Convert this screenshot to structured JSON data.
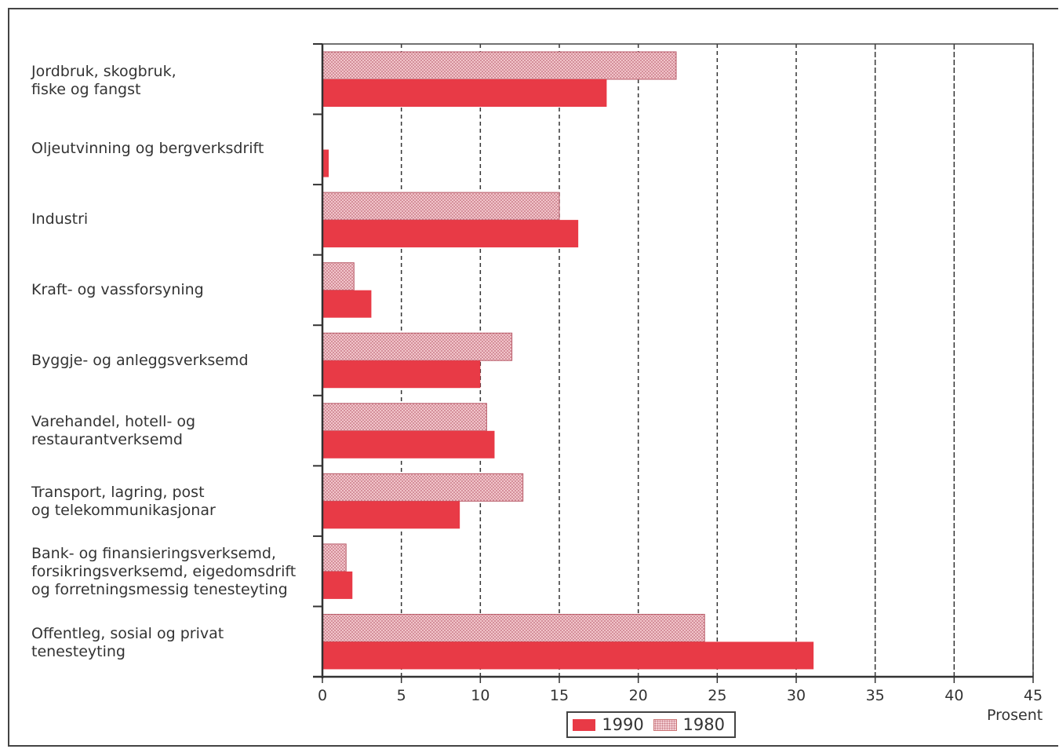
{
  "chart_data": {
    "type": "bar",
    "orientation": "horizontal",
    "categories": [
      "Jordbruk, skogbruk,\nfiske og fangst",
      "Oljeutvinning og bergverksdrift",
      "Industri",
      "Kraft- og vassforsyning",
      "Byggje- og anleggsverksemd",
      "Varehandel, hotell- og\nrestaurantverksemd",
      "Transport, lagring, post\nog telekommunikasjonar",
      "Bank- og finansieringsverksemd,\nforsikringsverksemd, eigedomsdrift\nog forretningsmessig tenesteyting",
      "Offentleg, sosial og privat\ntenesteyting"
    ],
    "series": [
      {
        "name": "1980",
        "values": [
          22.4,
          0,
          15.0,
          2.0,
          12.0,
          10.4,
          12.7,
          1.5,
          24.2
        ],
        "color": "#e9a6ae"
      },
      {
        "name": "1990",
        "values": [
          18.0,
          0.4,
          16.2,
          3.1,
          10.0,
          10.9,
          8.7,
          1.9,
          31.1
        ],
        "color": "#e83a46"
      }
    ],
    "xlim": [
      0,
      45
    ],
    "xticks": [
      0,
      5,
      10,
      15,
      20,
      25,
      30,
      35,
      40,
      45
    ],
    "xlabel": "Prosent",
    "grid": "vertical dashed",
    "legend": "bottom-center",
    "legend_entries": [
      "1990",
      "1980"
    ]
  }
}
